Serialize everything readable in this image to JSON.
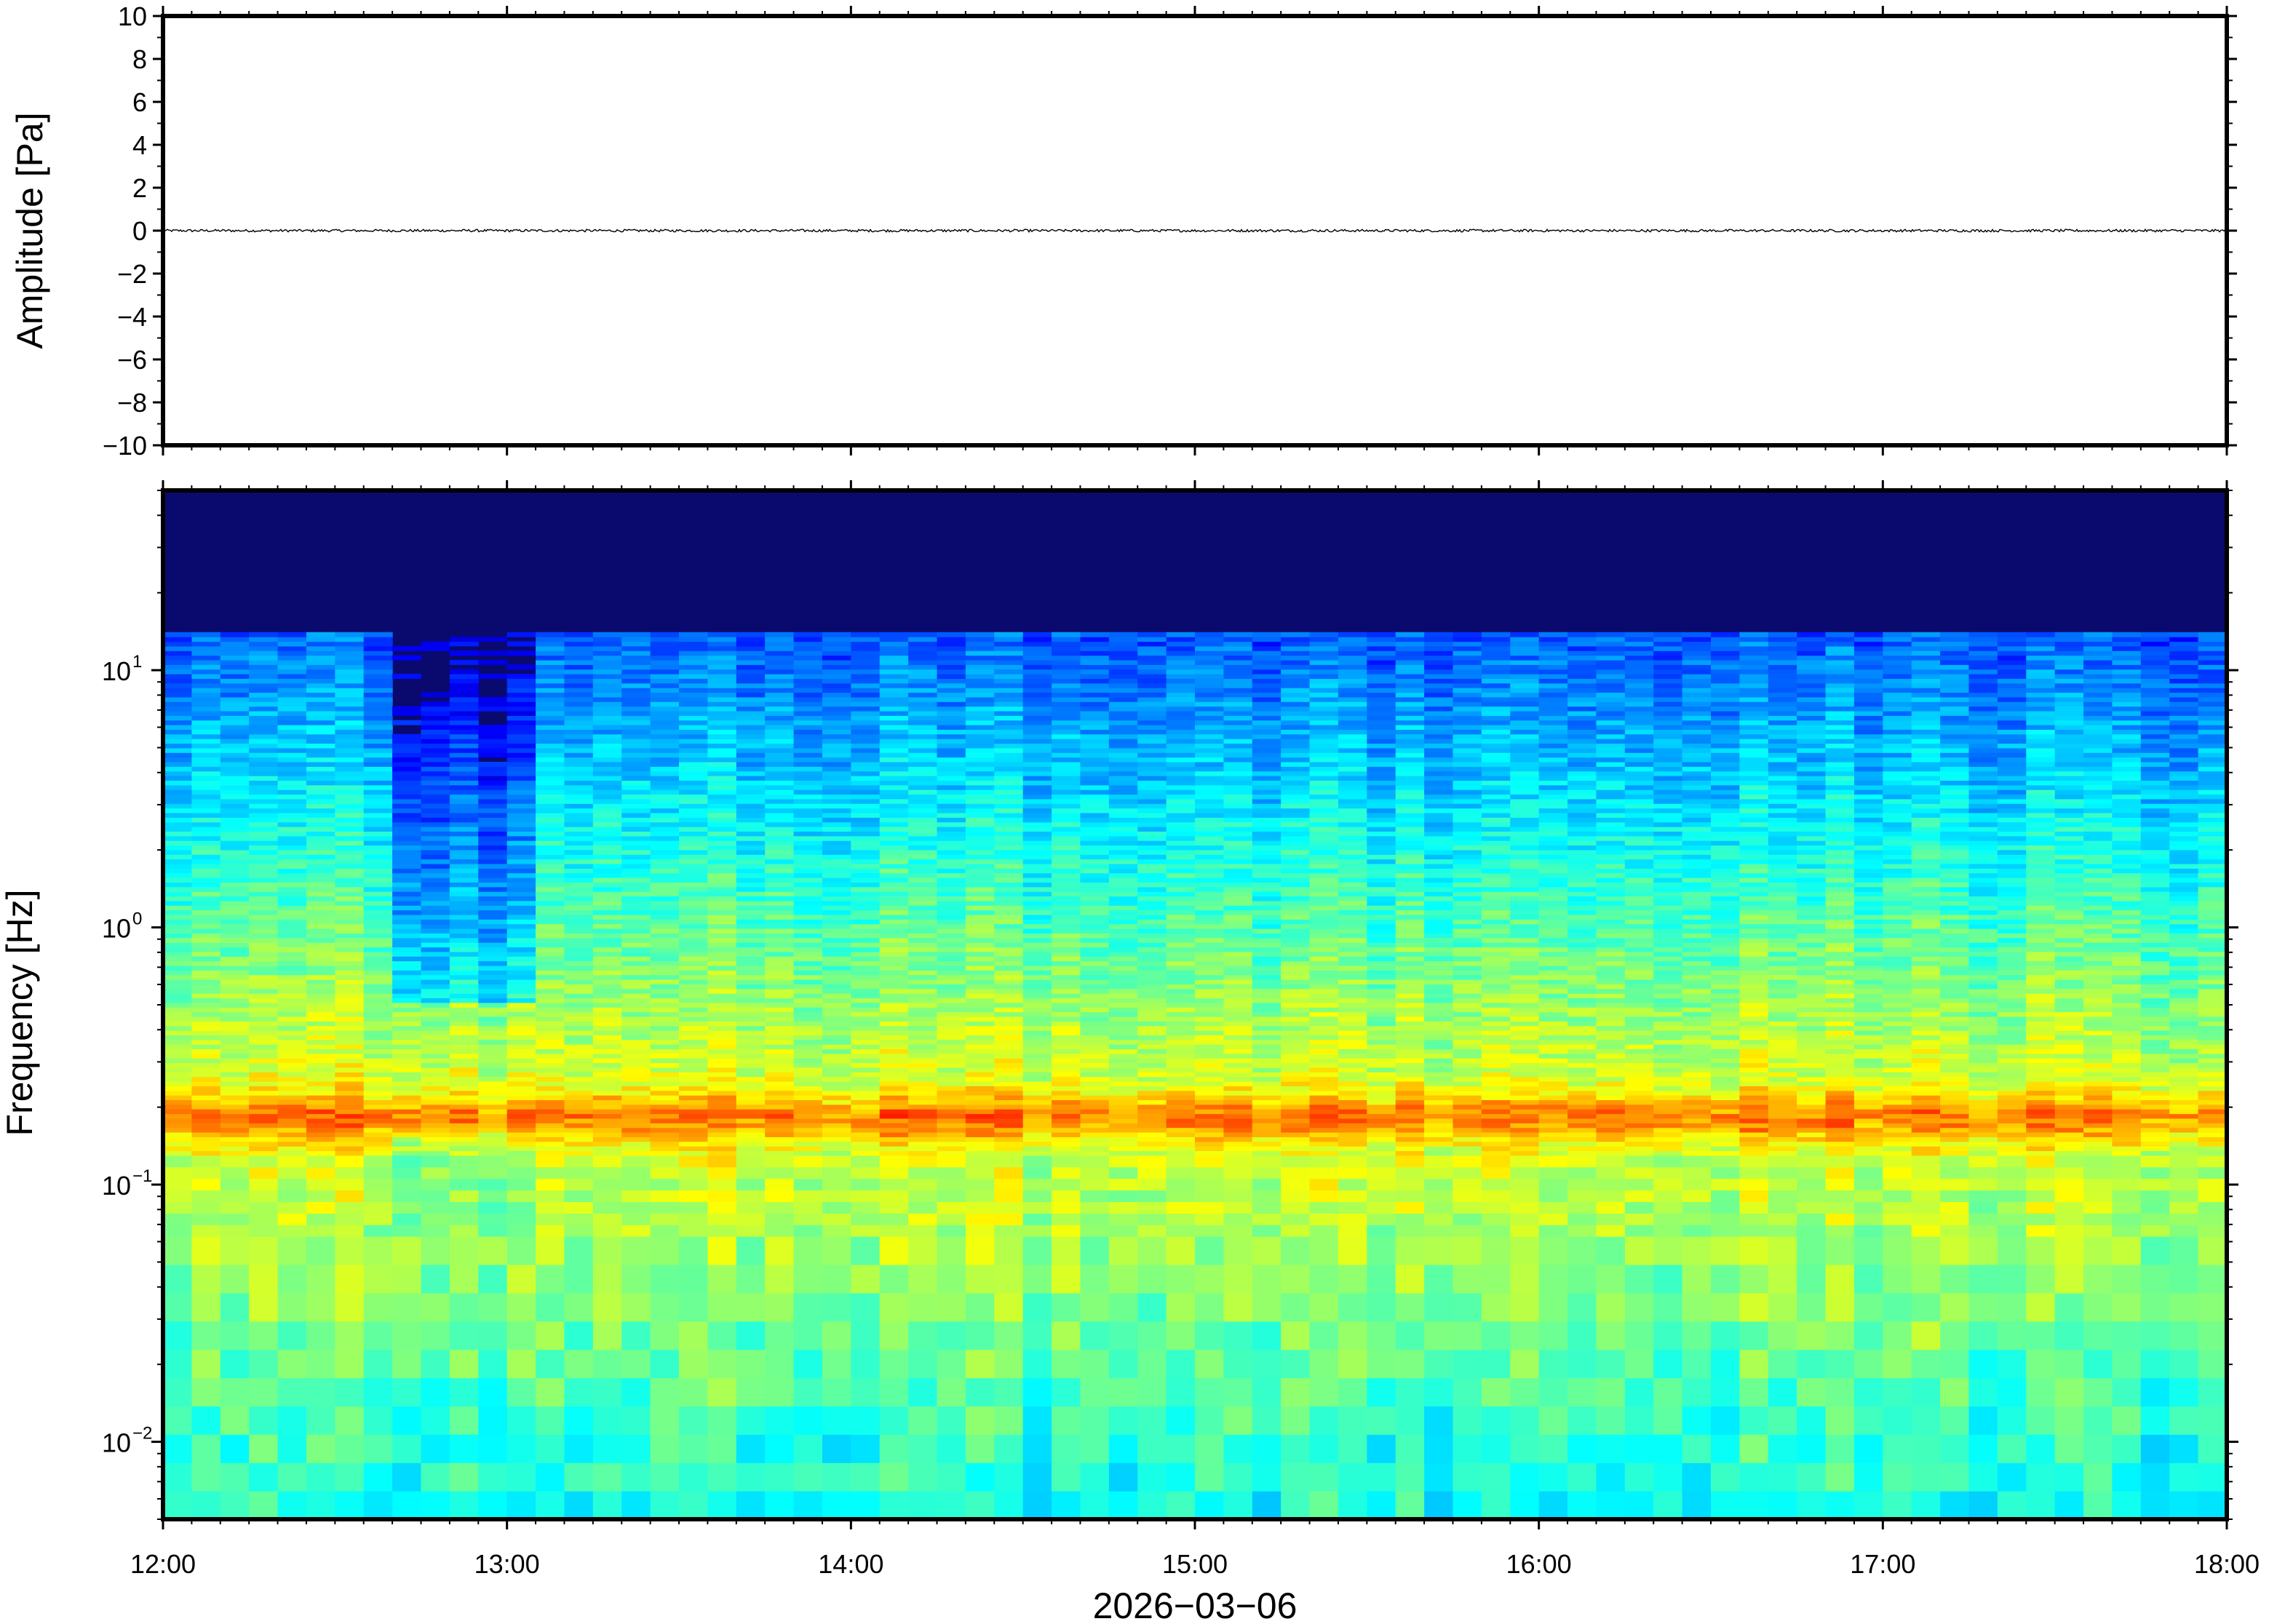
{
  "chart_data": [
    {
      "type": "line",
      "ylabel": "Amplitude [Pa]",
      "ylim": [
        -10,
        10
      ],
      "yticks": [
        "10",
        "8",
        "6",
        "4",
        "2",
        "0",
        "−2",
        "−4",
        "−6",
        "−8",
        "−10"
      ],
      "xlim": [
        "12:00",
        "18:00"
      ],
      "series": [
        {
          "values_summary": "waveform near 0 Pa across entire window",
          "baseline": 0,
          "noise_amplitude": 0.06
        }
      ]
    },
    {
      "type": "heatmap",
      "ylabel": "Frequency [Hz]",
      "yscale": "log",
      "ylim": [
        0.005,
        50
      ],
      "yticks": [
        {
          "base": "10",
          "exp": "1",
          "value": 10
        },
        {
          "base": "10",
          "exp": "0",
          "value": 1
        },
        {
          "base": "10",
          "exp": "−1",
          "value": 0.1
        },
        {
          "base": "10",
          "exp": "−2",
          "value": 0.01
        }
      ],
      "xlim": [
        "12:00",
        "18:00"
      ],
      "colormap": "jet",
      "features": {
        "microbarom_peak_hz": 0.18,
        "quiet_interval": [
          "12:40",
          "13:07"
        ],
        "change_at": "13:07"
      }
    }
  ],
  "x_axis": {
    "ticks": [
      "12:00",
      "13:00",
      "14:00",
      "15:00",
      "16:00",
      "17:00",
      "18:00"
    ],
    "date_label": "2026−03−06"
  },
  "colors": {
    "frame": "#000000",
    "background": "#ffffff",
    "spectrogram_top": "#0a0a6e"
  }
}
